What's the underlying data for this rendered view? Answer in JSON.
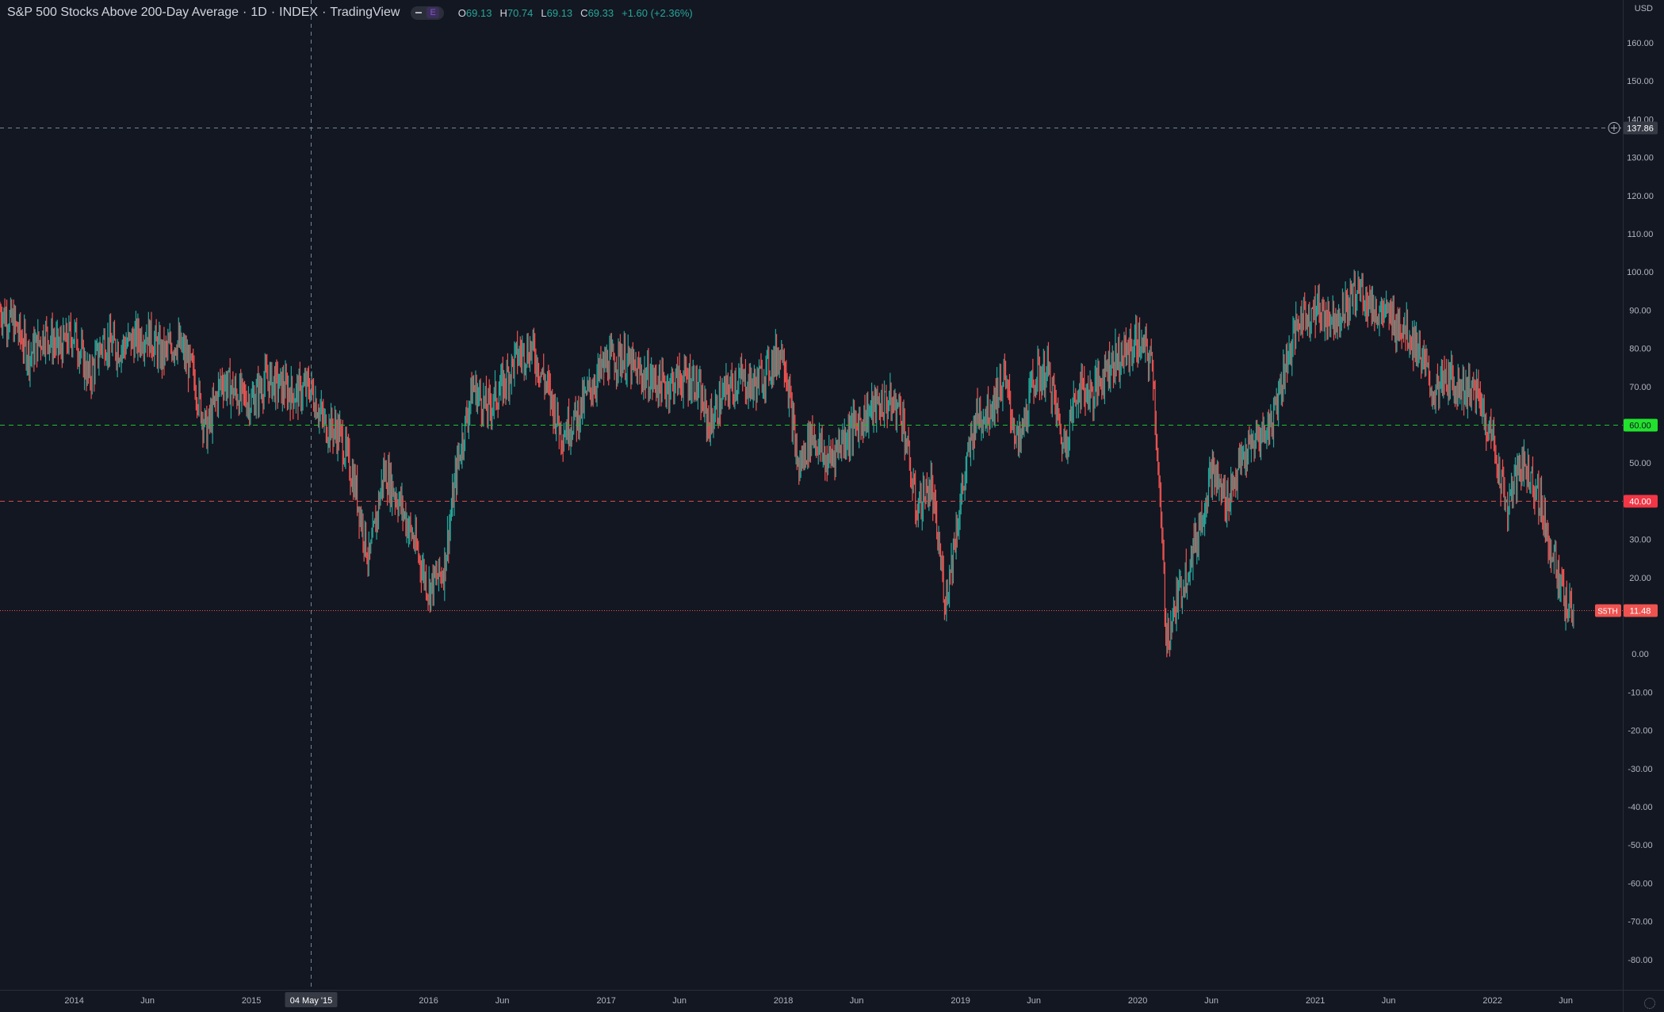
{
  "header": {
    "symbol_title": "S&P 500 Stocks Above 200-Day Average",
    "interval": "1D",
    "exchange": "INDEX",
    "source": "TradingView",
    "badge": "E",
    "open_label": "O",
    "open": "69.13",
    "high_label": "H",
    "high": "70.74",
    "low_label": "L",
    "low": "69.13",
    "close_label": "C",
    "close": "69.33",
    "change": "+1.60 (+2.36%)"
  },
  "currency": "USD",
  "price_axis": {
    "ticks": [
      160,
      150,
      140,
      130,
      120,
      110,
      100,
      90,
      80,
      70,
      60,
      50,
      40,
      30,
      20,
      10,
      0,
      -10,
      -20,
      -30,
      -40,
      -50,
      -60,
      -70,
      -80
    ],
    "tick_labels": [
      "160.00",
      "150.00",
      "140.00",
      "130.00",
      "120.00",
      "110.00",
      "100.00",
      "90.00",
      "80.00",
      "70.00",
      "60.00",
      "50.00",
      "40.00",
      "30.00",
      "20.00",
      "10.00",
      "0.00",
      "-10.00",
      "-20.00",
      "-30.00",
      "-40.00",
      "-50.00",
      "-60.00",
      "-70.00",
      "-80.00"
    ]
  },
  "time_axis": {
    "labels": [
      {
        "label": "2014",
        "date": "2014-01-01"
      },
      {
        "label": "Jun",
        "date": "2014-06-01"
      },
      {
        "label": "2015",
        "date": "2015-01-01"
      },
      {
        "label": "2016",
        "date": "2016-01-01"
      },
      {
        "label": "Jun",
        "date": "2016-06-01"
      },
      {
        "label": "2017",
        "date": "2017-01-01"
      },
      {
        "label": "Jun",
        "date": "2017-06-01"
      },
      {
        "label": "2018",
        "date": "2018-01-01"
      },
      {
        "label": "Jun",
        "date": "2018-06-01"
      },
      {
        "label": "2019",
        "date": "2019-01-01"
      },
      {
        "label": "Jun",
        "date": "2019-06-01"
      },
      {
        "label": "2020",
        "date": "2020-01-01"
      },
      {
        "label": "Jun",
        "date": "2020-06-01"
      },
      {
        "label": "2021",
        "date": "2021-01-01"
      },
      {
        "label": "Jun",
        "date": "2021-06-01"
      },
      {
        "label": "2022",
        "date": "2022-01-01"
      },
      {
        "label": "Jun",
        "date": "2022-06-01"
      }
    ]
  },
  "crosshair": {
    "date_label": "04 May '15",
    "date": "2015-05-04",
    "price": 137.86,
    "price_label": "137.86"
  },
  "levels": [
    {
      "price": 60,
      "label": "60.00",
      "color": "#22c02d",
      "label_bg": "#22e02d",
      "label_color": "#131722"
    },
    {
      "price": 40,
      "label": "40.00",
      "color": "#d84a4a",
      "label_bg": "#f23645",
      "label_color": "#ffffff"
    }
  ],
  "last_price": {
    "price": 11.48,
    "label": "11.48",
    "symbol_tag": "S5TH",
    "color": "#ef5350"
  },
  "colors": {
    "background": "#131722",
    "up": "#26a69a",
    "down": "#ef5350",
    "axis_text": "#b2b5be",
    "axis_line": "#2a2e39"
  },
  "chart_data": {
    "type": "candlestick",
    "title": "S&P 500 Stocks Above 200-Day Average",
    "interval": "1D",
    "ylim": [
      -85,
      165
    ],
    "grid": false,
    "x_range": [
      "2013-08-01",
      "2022-09-15"
    ],
    "series": [
      {
        "name": "S5TH",
        "points": [
          [
            "2013-08-01",
            90
          ],
          [
            "2013-09-01",
            86
          ],
          [
            "2013-10-01",
            78
          ],
          [
            "2013-11-01",
            84
          ],
          [
            "2013-12-01",
            80
          ],
          [
            "2014-01-01",
            84
          ],
          [
            "2014-02-01",
            72
          ],
          [
            "2014-03-01",
            82
          ],
          [
            "2014-04-01",
            80
          ],
          [
            "2014-05-01",
            82
          ],
          [
            "2014-06-01",
            84
          ],
          [
            "2014-07-01",
            78
          ],
          [
            "2014-08-01",
            82
          ],
          [
            "2014-09-01",
            74
          ],
          [
            "2014-10-01",
            58
          ],
          [
            "2014-11-01",
            72
          ],
          [
            "2014-12-01",
            68
          ],
          [
            "2015-01-01",
            66
          ],
          [
            "2015-02-01",
            72
          ],
          [
            "2015-03-01",
            70
          ],
          [
            "2015-04-01",
            68
          ],
          [
            "2015-05-01",
            70
          ],
          [
            "2015-06-01",
            60
          ],
          [
            "2015-07-01",
            58
          ],
          [
            "2015-08-01",
            45
          ],
          [
            "2015-09-01",
            24
          ],
          [
            "2015-10-01",
            48
          ],
          [
            "2015-11-01",
            40
          ],
          [
            "2015-12-01",
            30
          ],
          [
            "2016-01-01",
            17
          ],
          [
            "2016-02-01",
            22
          ],
          [
            "2016-03-01",
            50
          ],
          [
            "2016-04-01",
            70
          ],
          [
            "2016-05-01",
            64
          ],
          [
            "2016-06-01",
            70
          ],
          [
            "2016-07-01",
            78
          ],
          [
            "2016-08-01",
            80
          ],
          [
            "2016-09-01",
            70
          ],
          [
            "2016-10-01",
            58
          ],
          [
            "2016-11-01",
            62
          ],
          [
            "2016-12-01",
            70
          ],
          [
            "2017-01-01",
            76
          ],
          [
            "2017-02-01",
            78
          ],
          [
            "2017-03-01",
            74
          ],
          [
            "2017-04-01",
            72
          ],
          [
            "2017-05-01",
            70
          ],
          [
            "2017-06-01",
            72
          ],
          [
            "2017-07-01",
            72
          ],
          [
            "2017-08-01",
            60
          ],
          [
            "2017-09-01",
            68
          ],
          [
            "2017-10-01",
            72
          ],
          [
            "2017-11-01",
            70
          ],
          [
            "2018-01-01",
            80
          ],
          [
            "2018-02-01",
            48
          ],
          [
            "2018-03-01",
            58
          ],
          [
            "2018-04-01",
            50
          ],
          [
            "2018-05-01",
            56
          ],
          [
            "2018-06-01",
            60
          ],
          [
            "2018-07-01",
            64
          ],
          [
            "2018-08-01",
            66
          ],
          [
            "2018-09-01",
            64
          ],
          [
            "2018-10-01",
            38
          ],
          [
            "2018-11-01",
            44
          ],
          [
            "2018-12-01",
            14
          ],
          [
            "2019-01-01",
            40
          ],
          [
            "2019-02-01",
            62
          ],
          [
            "2019-03-01",
            64
          ],
          [
            "2019-04-01",
            72
          ],
          [
            "2019-05-01",
            54
          ],
          [
            "2019-06-01",
            72
          ],
          [
            "2019-07-01",
            74
          ],
          [
            "2019-08-01",
            54
          ],
          [
            "2019-09-01",
            70
          ],
          [
            "2019-10-01",
            68
          ],
          [
            "2019-11-01",
            76
          ],
          [
            "2019-12-01",
            78
          ],
          [
            "2020-01-01",
            82
          ],
          [
            "2020-02-01",
            76
          ],
          [
            "2020-03-01",
            4
          ],
          [
            "2020-04-01",
            18
          ],
          [
            "2020-05-01",
            30
          ],
          [
            "2020-06-01",
            48
          ],
          [
            "2020-07-01",
            40
          ],
          [
            "2020-08-01",
            50
          ],
          [
            "2020-09-01",
            56
          ],
          [
            "2020-10-01",
            60
          ],
          [
            "2020-11-01",
            76
          ],
          [
            "2020-12-01",
            88
          ],
          [
            "2021-01-01",
            90
          ],
          [
            "2021-02-01",
            88
          ],
          [
            "2021-03-01",
            90
          ],
          [
            "2021-04-01",
            96
          ],
          [
            "2021-05-01",
            90
          ],
          [
            "2021-06-01",
            88
          ],
          [
            "2021-07-01",
            86
          ],
          [
            "2021-08-01",
            80
          ],
          [
            "2021-09-01",
            68
          ],
          [
            "2021-10-01",
            72
          ],
          [
            "2021-11-01",
            70
          ],
          [
            "2021-12-01",
            68
          ],
          [
            "2022-01-01",
            56
          ],
          [
            "2022-02-01",
            38
          ],
          [
            "2022-03-01",
            50
          ],
          [
            "2022-04-01",
            44
          ],
          [
            "2022-05-01",
            28
          ],
          [
            "2022-06-01",
            12
          ],
          [
            "2022-06-17",
            11.48
          ]
        ]
      }
    ]
  }
}
